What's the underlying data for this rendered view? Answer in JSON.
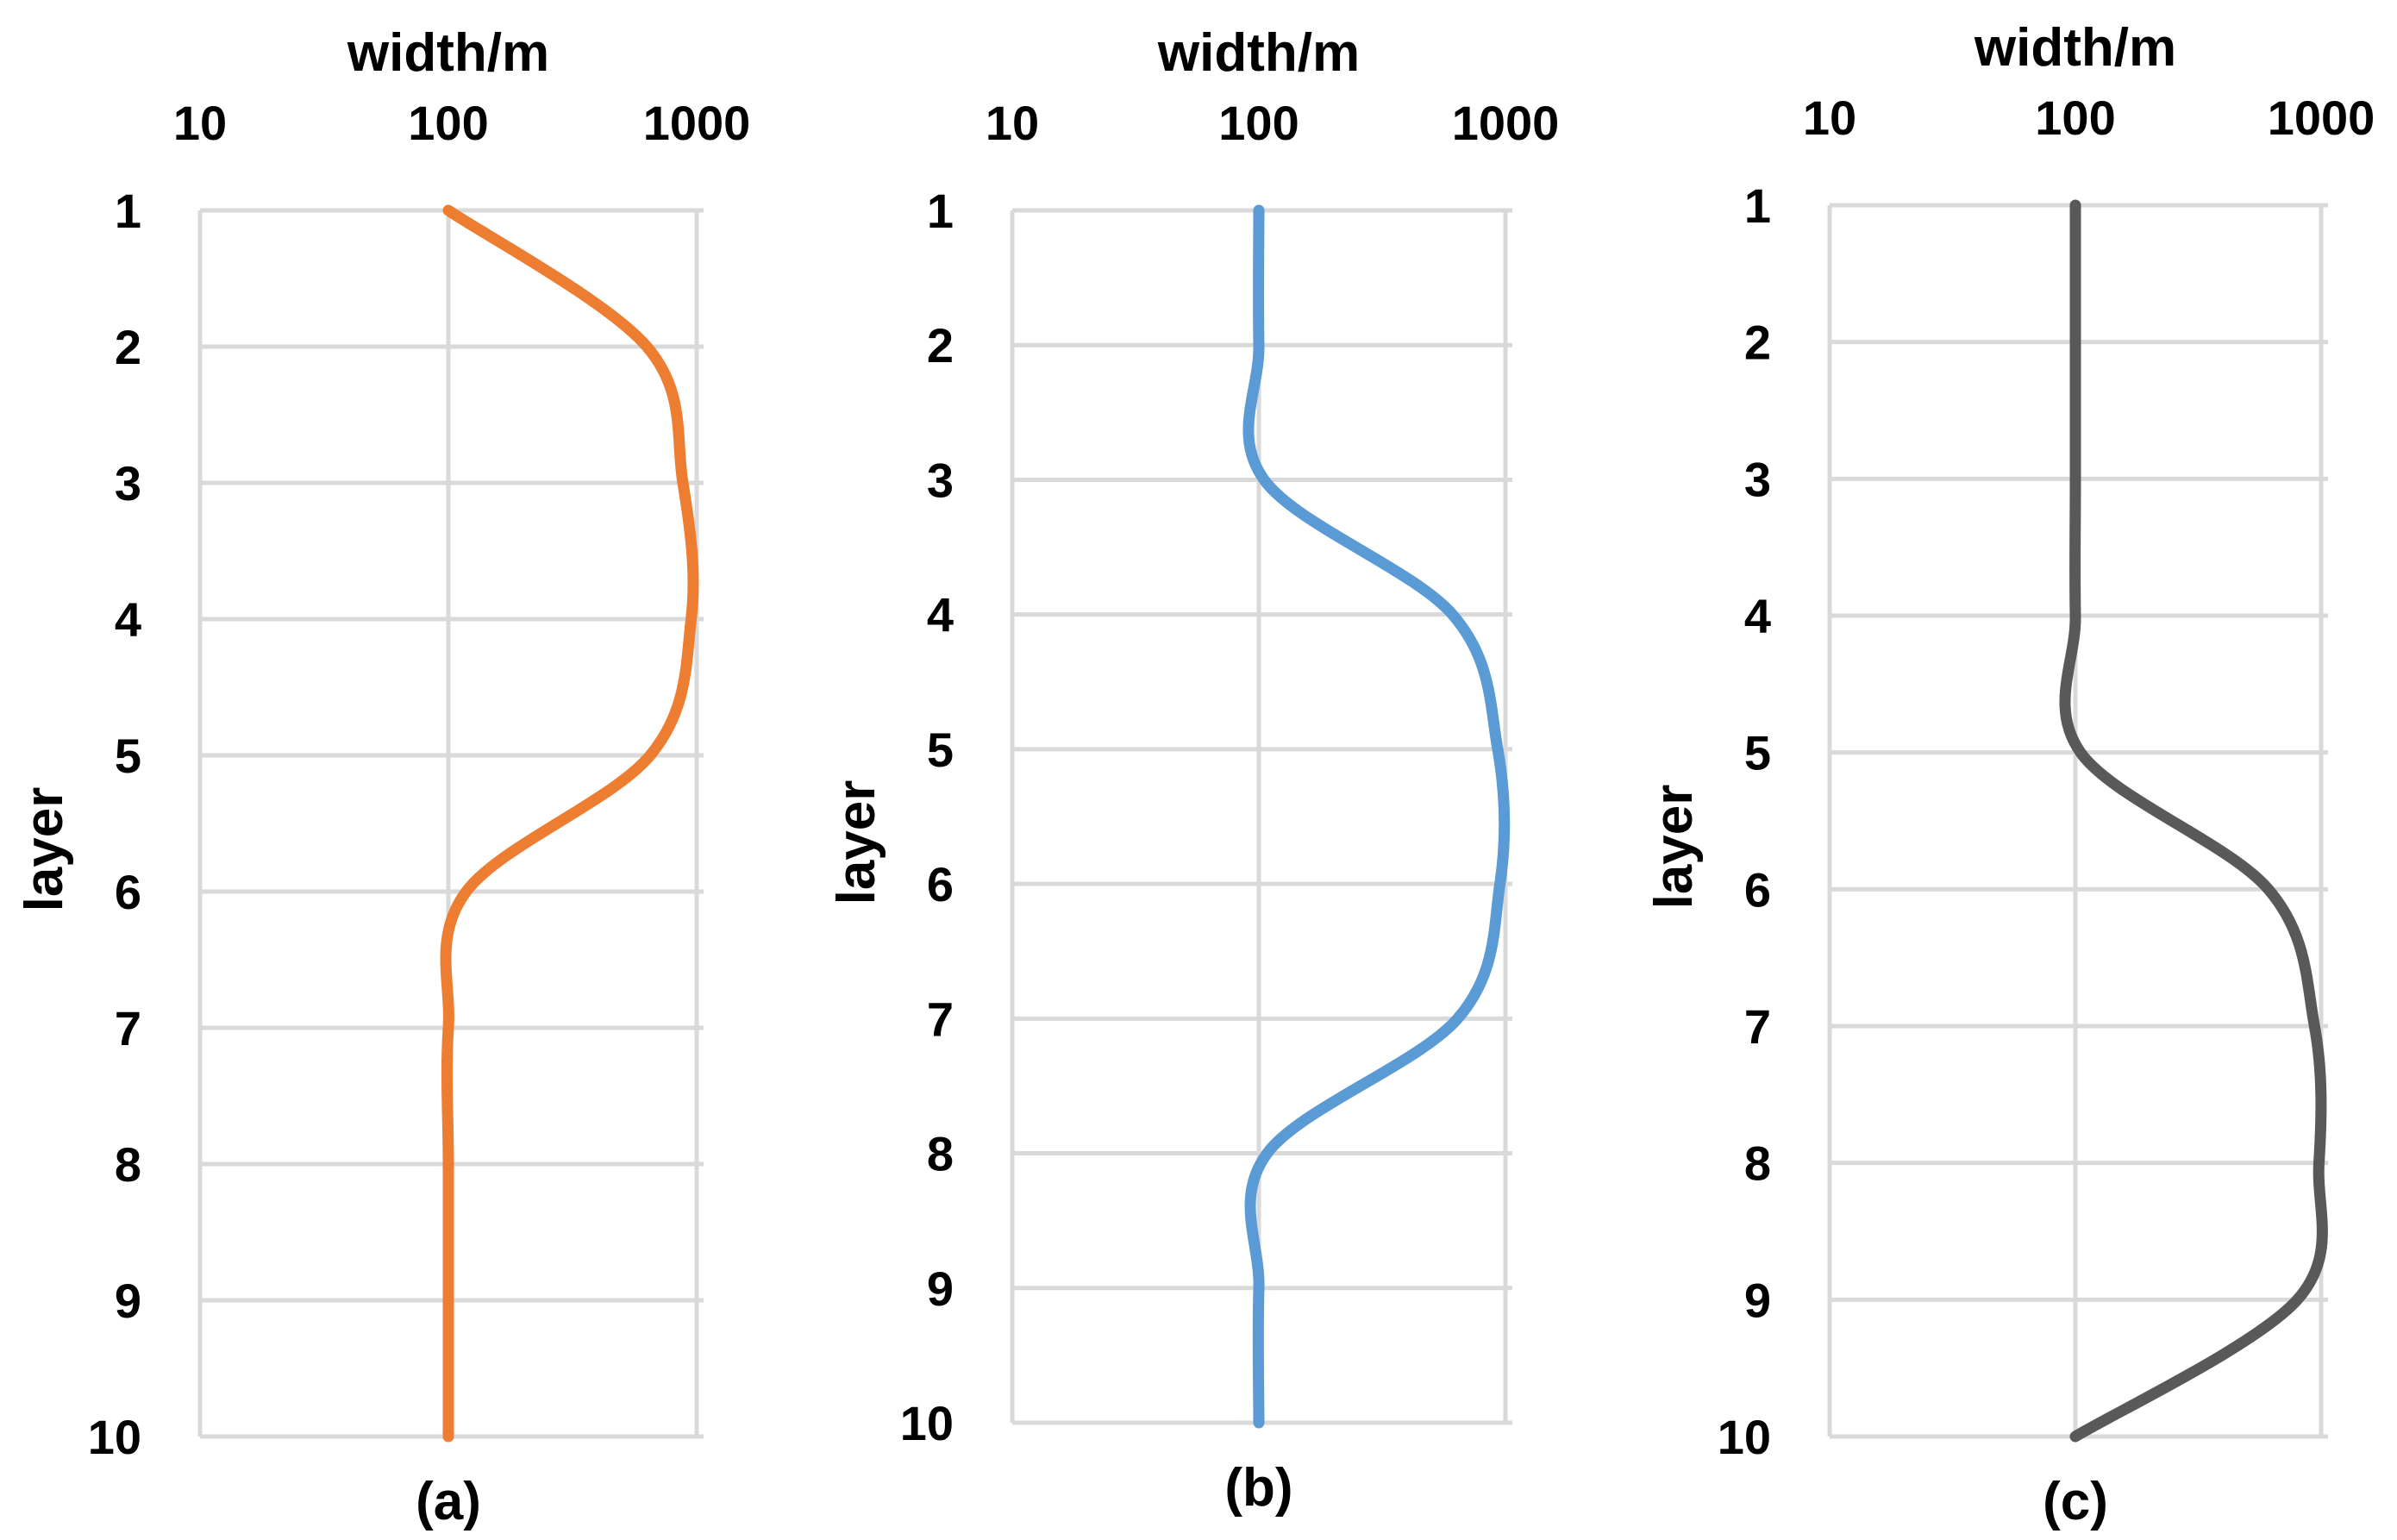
{
  "chart_data": [
    {
      "type": "line",
      "caption": "(a)",
      "xlabel": "width/m",
      "ylabel": "layer",
      "x_scale": "log",
      "xlim": [
        10,
        1000
      ],
      "x_ticks": [
        "10",
        "100",
        "1000"
      ],
      "ylim": [
        1,
        10
      ],
      "y_inverted": true,
      "y_ticks": [
        "1",
        "2",
        "3",
        "4",
        "5",
        "6",
        "7",
        "8",
        "9",
        "10"
      ],
      "grid": true,
      "series": [
        {
          "color": "#ed7d31",
          "layers": [
            1,
            2,
            3,
            4,
            5,
            6,
            7,
            8,
            9,
            10
          ],
          "width": [
            100,
            630,
            880,
            950,
            650,
            118,
            100,
            100,
            100,
            100
          ]
        }
      ]
    },
    {
      "type": "line",
      "caption": "(b)",
      "xlabel": "width/m",
      "ylabel": "layer",
      "x_scale": "log",
      "xlim": [
        10,
        1000
      ],
      "x_ticks": [
        "10",
        "100",
        "1000"
      ],
      "ylim": [
        1,
        10
      ],
      "y_inverted": true,
      "y_ticks": [
        "1",
        "2",
        "3",
        "4",
        "5",
        "6",
        "7",
        "8",
        "9",
        "10"
      ],
      "grid": true,
      "series": [
        {
          "color": "#5b9bd5",
          "layers": [
            1,
            2,
            3,
            4,
            5,
            6,
            7,
            8,
            9,
            10
          ],
          "width": [
            100,
            100,
            105,
            610,
            930,
            950,
            640,
            108,
            100,
            100
          ]
        }
      ]
    },
    {
      "type": "line",
      "caption": "(c)",
      "xlabel": "width/m",
      "ylabel": "layer",
      "x_scale": "log",
      "xlim": [
        10,
        1000
      ],
      "x_ticks": [
        "10",
        "100",
        "1000"
      ],
      "ylim": [
        1,
        10
      ],
      "y_inverted": true,
      "y_ticks": [
        "1",
        "2",
        "3",
        "4",
        "5",
        "6",
        "7",
        "8",
        "9",
        "10"
      ],
      "grid": true,
      "series": [
        {
          "color": "#595959",
          "layers": [
            1,
            2,
            3,
            4,
            5,
            6,
            7,
            8,
            9,
            10
          ],
          "width": [
            100,
            100,
            100,
            100,
            105,
            610,
            940,
            980,
            800,
            100
          ]
        }
      ]
    }
  ]
}
